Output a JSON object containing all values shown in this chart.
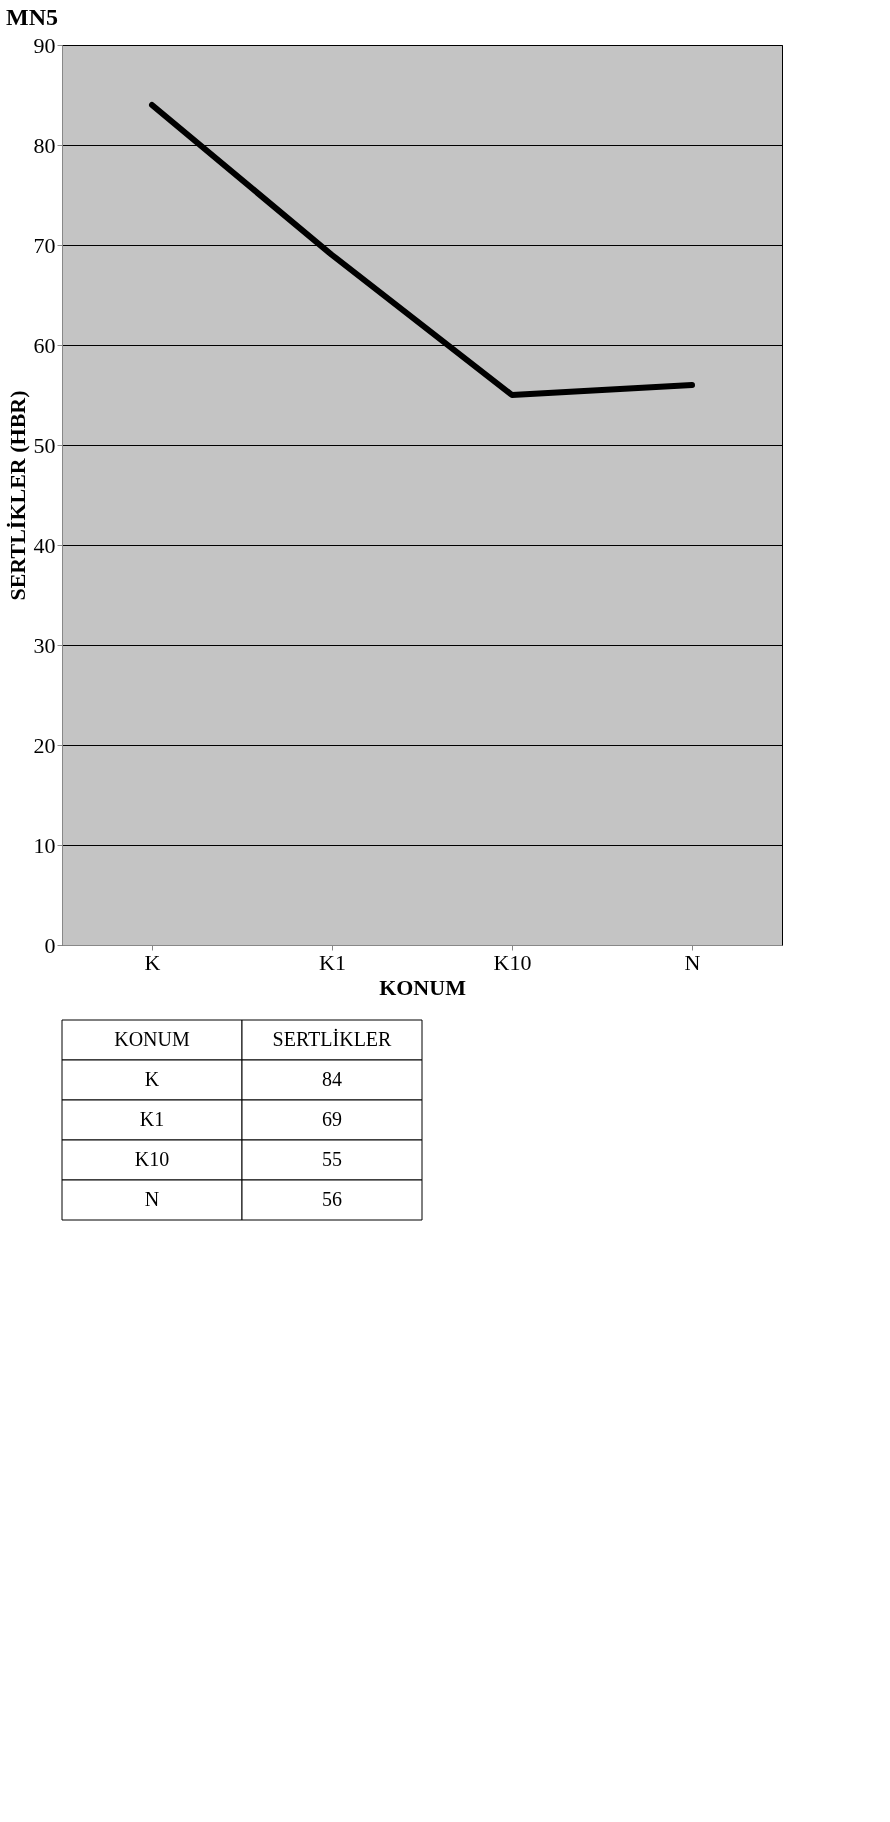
{
  "chart_data": {
    "type": "line",
    "title": "MN5",
    "xlabel": "KONUM",
    "ylabel": "SERTLİKLER (HBR)",
    "categories": [
      "K",
      "K1",
      "K10",
      "N"
    ],
    "series": [
      {
        "color": "#000000",
        "values": [
          84,
          69,
          55,
          56
        ]
      }
    ],
    "ylim": [
      0,
      90
    ],
    "yticks": [
      0,
      10,
      20,
      30,
      40,
      50,
      60,
      70,
      80,
      90
    ],
    "grid": "y",
    "marker": "none",
    "line_style": "solid",
    "annotations": [
      "KONUM",
      "SERTLİKLER",
      "K",
      "84",
      "K1",
      "69",
      "K10",
      "55",
      "N",
      "56"
    ]
  }
}
